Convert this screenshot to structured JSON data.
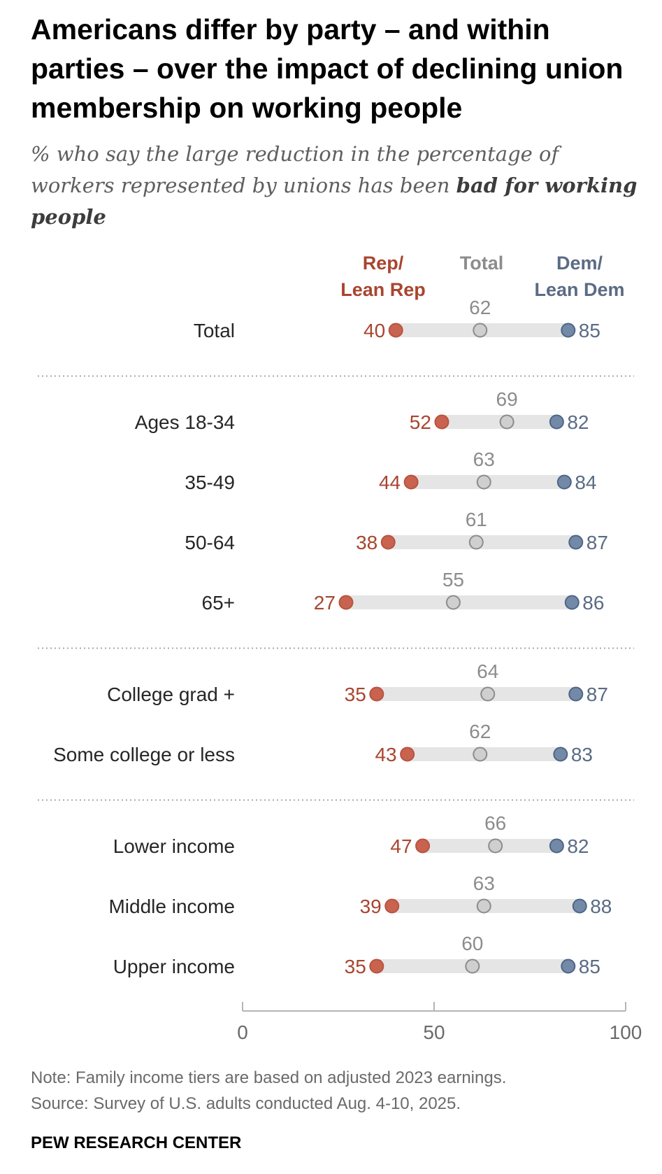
{
  "chart_data": {
    "type": "dot",
    "title": "Americans differ by party – and within parties – over the impact of declining union membership on working people",
    "subtitle_plain": "% who say the large reduction in the percentage of workers represented by unions has been ",
    "subtitle_bold": "bad for working people",
    "legend": {
      "rep": [
        "Rep/",
        "Lean Rep"
      ],
      "total": "Total",
      "dem": [
        "Dem/",
        "Lean Dem"
      ]
    },
    "xlim": [
      0,
      100
    ],
    "ticks": [
      0,
      50,
      100
    ],
    "groups": [
      {
        "rows": [
          {
            "label": "Total",
            "rep": 40,
            "total": 62,
            "dem": 85
          }
        ]
      },
      {
        "rows": [
          {
            "label": "Ages 18-34",
            "rep": 52,
            "total": 69,
            "dem": 82
          },
          {
            "label": "35-49",
            "rep": 44,
            "total": 63,
            "dem": 84
          },
          {
            "label": "50-64",
            "rep": 38,
            "total": 61,
            "dem": 87
          },
          {
            "label": "65+",
            "rep": 27,
            "total": 55,
            "dem": 86
          }
        ]
      },
      {
        "rows": [
          {
            "label": "College grad +",
            "rep": 35,
            "total": 64,
            "dem": 87
          },
          {
            "label": "Some college or less",
            "rep": 43,
            "total": 62,
            "dem": 83
          }
        ]
      },
      {
        "rows": [
          {
            "label": "Lower income",
            "rep": 47,
            "total": 66,
            "dem": 82
          },
          {
            "label": "Middle income",
            "rep": 39,
            "total": 63,
            "dem": 88
          },
          {
            "label": "Upper income",
            "rep": 35,
            "total": 60,
            "dem": 85
          }
        ]
      }
    ],
    "colors": {
      "rep": "#b9533f",
      "rep_fill": "#c8634f",
      "rep_text": "#a9452f",
      "total": "#8c8c8c",
      "total_fill": "#cfcfcf",
      "dem": "#4e6585",
      "dem_fill": "#7389a8",
      "dem_text": "#5a6b84",
      "bar": "#e5e5e5"
    }
  },
  "footer": {
    "note": "Note: Family income tiers are based on adjusted 2023 earnings.",
    "source": "Source: Survey of U.S. adults conducted Aug. 4-10, 2025.",
    "brand": "PEW RESEARCH CENTER"
  }
}
